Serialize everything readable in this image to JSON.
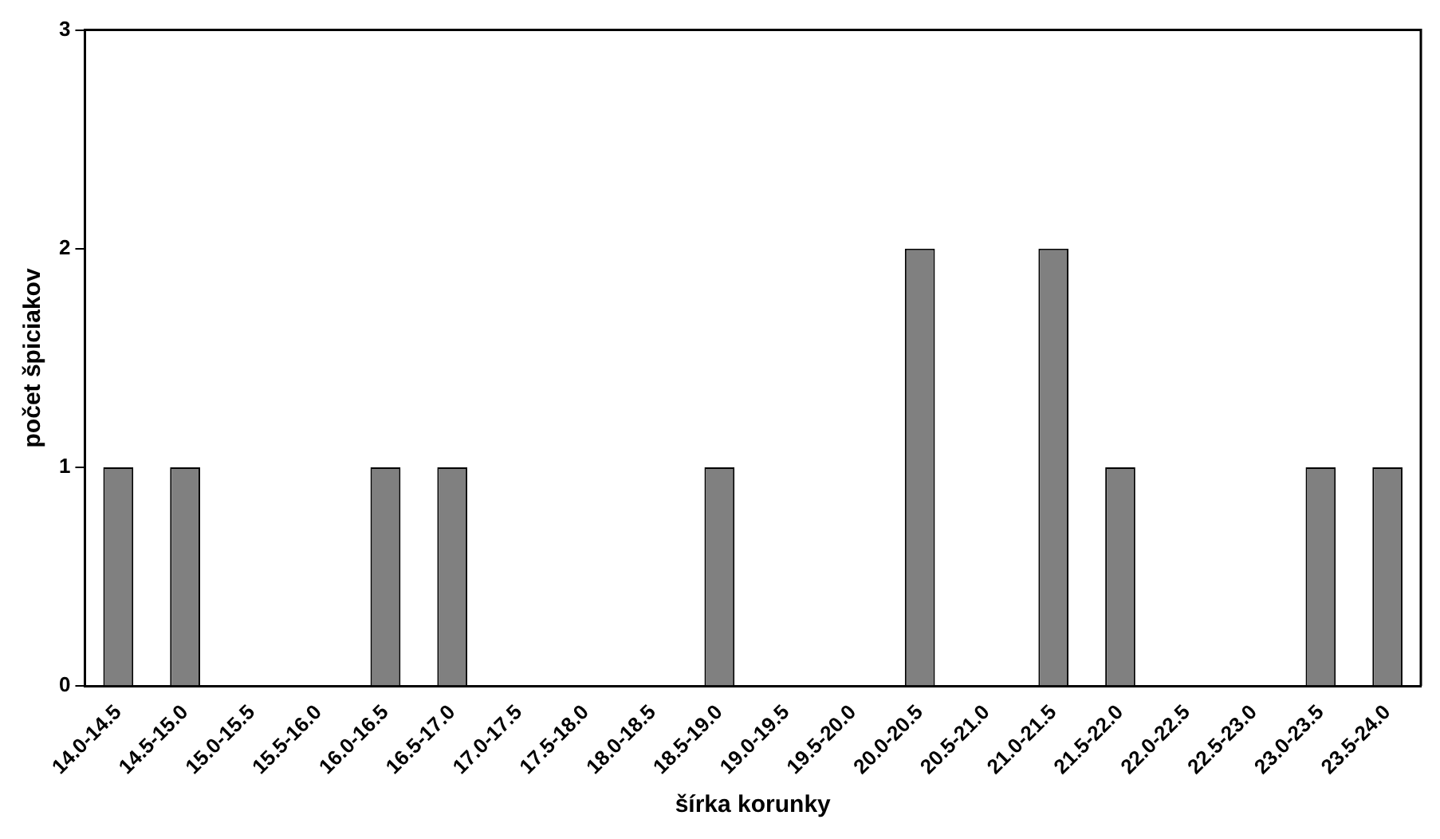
{
  "chart_data": {
    "type": "bar",
    "xlabel": "šírka korunky",
    "ylabel": "počet špiciakov",
    "categories": [
      "14.0-14.5",
      "14.5-15.0",
      "15.0-15.5",
      "15.5-16.0",
      "16.0-16.5",
      "16.5-17.0",
      "17.0-17.5",
      "17.5-18.0",
      "18.0-18.5",
      "18.5-19.0",
      "19.0-19.5",
      "19.5-20.0",
      "20.0-20.5",
      "20.5-21.0",
      "21.0-21.5",
      "21.5-22.0",
      "22.0-22.5",
      "22.5-23.0",
      "23.0-23.5",
      "23.5-24.0"
    ],
    "values": [
      1,
      1,
      0,
      0,
      1,
      1,
      0,
      0,
      0,
      1,
      0,
      0,
      2,
      0,
      2,
      1,
      0,
      0,
      1,
      1
    ],
    "color": "#808080",
    "ylim": [
      0,
      3
    ],
    "yticks": [
      0,
      1,
      2,
      3
    ],
    "grid": false,
    "legend": false
  }
}
